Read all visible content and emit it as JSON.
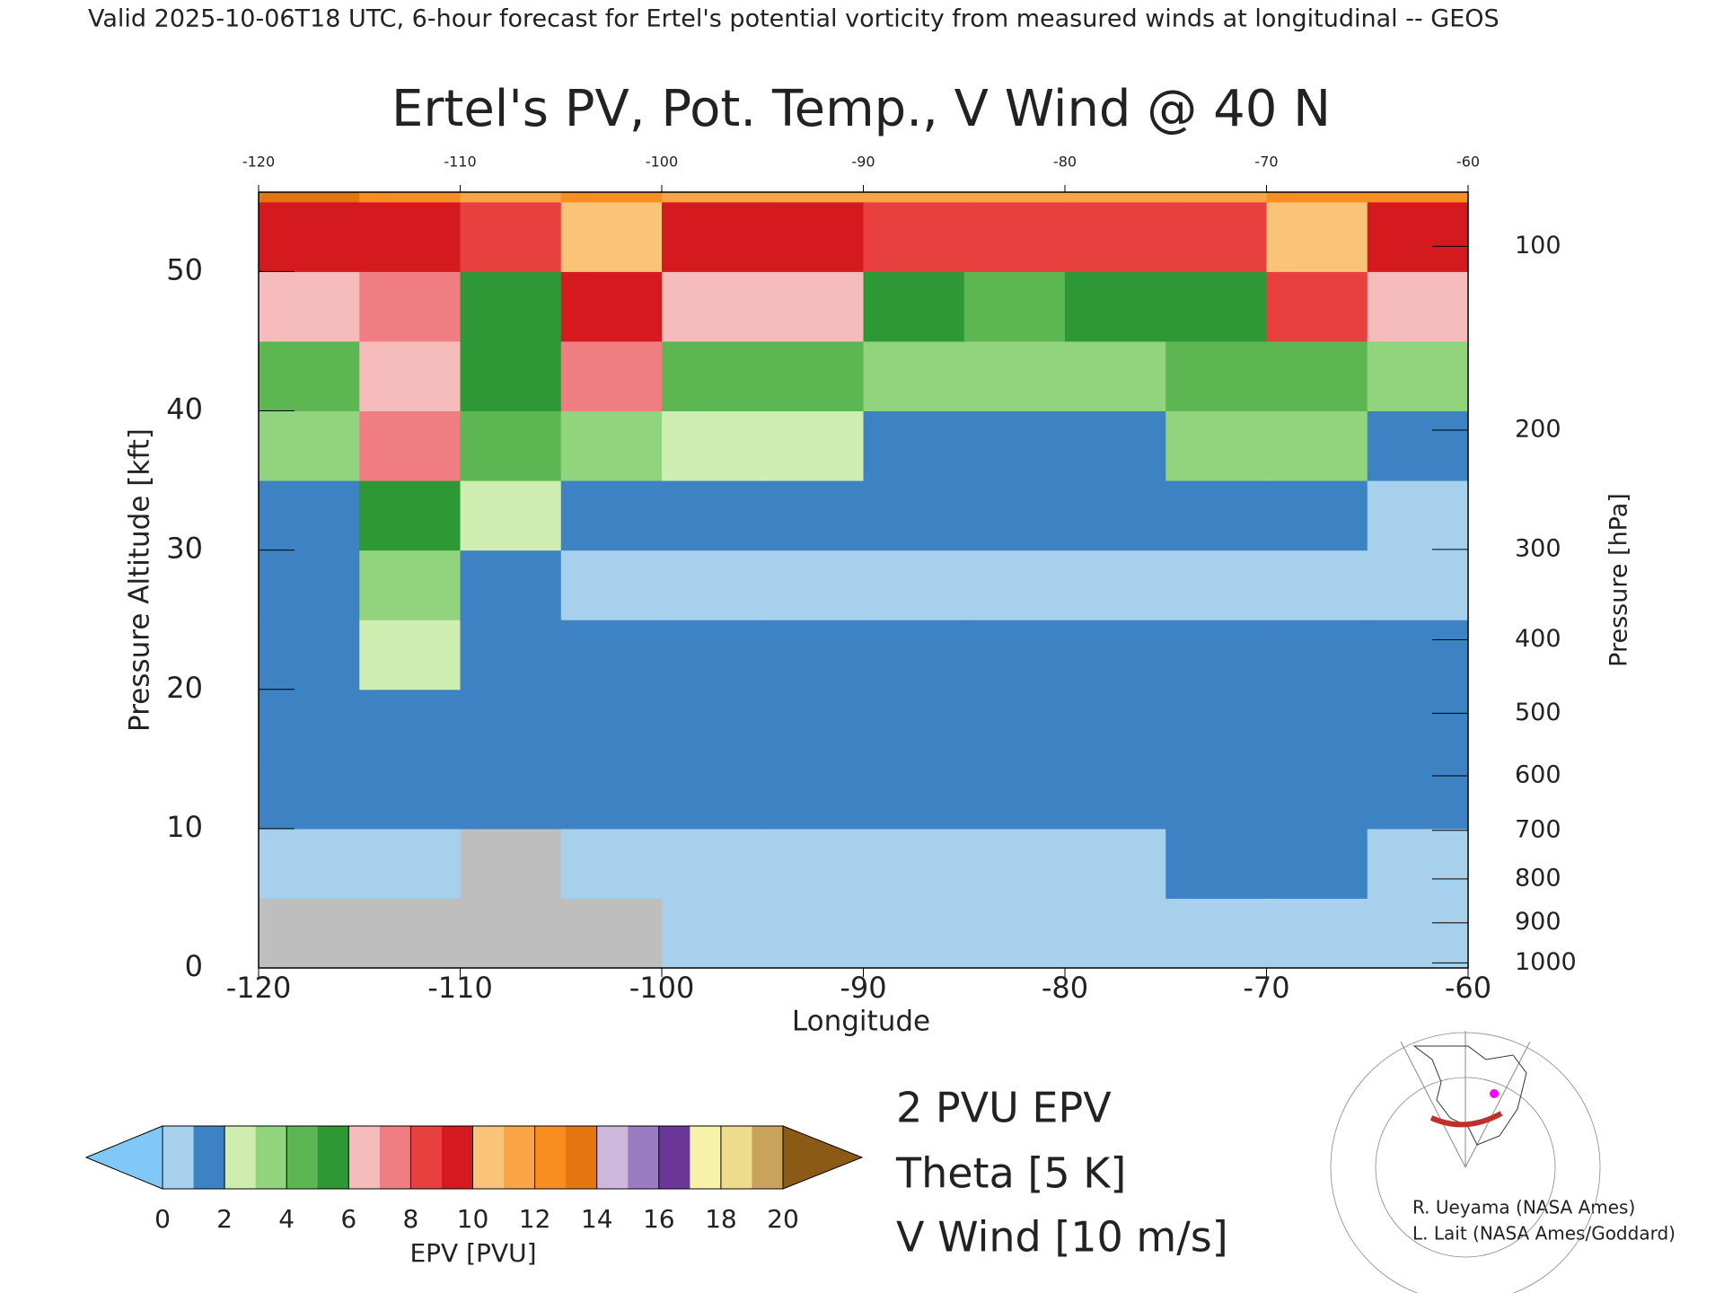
{
  "chart_data": {
    "type": "heatmap",
    "header": "Valid 2025-10-06T18 UTC, 6-hour forecast for Ertel's potential vorticity from measured winds at longitudinal -- GEOS",
    "title": "Ertel's PV, Pot. Temp., V Wind @ 40 N",
    "xlabel": "Longitude",
    "ylabel": "Pressure Altitude [kft]",
    "y2label": "Pressure [hPa]",
    "xlim": [
      -120,
      -60
    ],
    "xticks": [
      -120,
      -110,
      -100,
      -90,
      -80,
      -70,
      -60
    ],
    "ylim": [
      0,
      55.7
    ],
    "yticks": [
      0,
      10,
      20,
      30,
      40,
      50
    ],
    "y2scale": "pressure-altitude",
    "y2ticks": [
      100,
      200,
      300,
      400,
      500,
      600,
      700,
      800,
      900,
      1000
    ],
    "x": [
      -117.5,
      -112.5,
      -107.5,
      -102.5,
      -97.5,
      -92.5,
      -87.5,
      -82.5,
      -77.5,
      -72.5,
      -67.5,
      -62.5
    ],
    "y": [
      2.5,
      7.5,
      12.5,
      17.5,
      22.5,
      27.5,
      32.5,
      37.5,
      42.5,
      47.5,
      52.5,
      57.5
    ],
    "z": [
      [
        null,
        null,
        null,
        null,
        0.5,
        0.5,
        0.5,
        0.5,
        0.5,
        0.8,
        0.8,
        0.8
      ],
      [
        0.8,
        0.8,
        null,
        0.8,
        0.9,
        0.9,
        0.9,
        0.9,
        0.9,
        1.0,
        1.0,
        0.9
      ],
      [
        1.0,
        1.2,
        1.0,
        1.0,
        1.0,
        1.0,
        1.0,
        1.0,
        1.0,
        1.0,
        1.0,
        1.0
      ],
      [
        1.0,
        1.0,
        1.0,
        1.0,
        1.0,
        1.0,
        1.0,
        1.0,
        1.0,
        1.0,
        1.0,
        1.0
      ],
      [
        1.2,
        2.5,
        1.0,
        1.0,
        1.0,
        1.0,
        1.0,
        1.3,
        1.0,
        1.0,
        1.0,
        1.0
      ],
      [
        1.3,
        3.5,
        1.0,
        0.9,
        0.9,
        0.9,
        0.9,
        0.9,
        0.9,
        0.9,
        0.9,
        0.9
      ],
      [
        1.5,
        5,
        2.5,
        1.2,
        1.2,
        1.0,
        1.0,
        1.0,
        1.0,
        1.0,
        1.0,
        0.8
      ],
      [
        3.5,
        7,
        4,
        3.5,
        2.5,
        2.2,
        1.5,
        1.5,
        1.5,
        3,
        3,
        1.0
      ],
      [
        4.5,
        6.5,
        5,
        7.5,
        4.5,
        4,
        3.5,
        3.5,
        3.5,
        4,
        4.5,
        3
      ],
      [
        6,
        7.5,
        5.5,
        9,
        6,
        6,
        5,
        4.5,
        5,
        5,
        8,
        6
      ],
      [
        9,
        9.5,
        8,
        10,
        9,
        9,
        8.5,
        8,
        8.5,
        8,
        10,
        9.5
      ],
      [
        13,
        12,
        11,
        12,
        11,
        11,
        11,
        11,
        11,
        11,
        12,
        12
      ]
    ],
    "colorbar_label": "EPV [PVU]",
    "colorbar_levels": [
      0,
      1,
      2,
      3,
      4,
      5,
      6,
      7,
      8,
      9,
      10,
      11,
      12,
      13,
      14,
      15,
      16,
      17,
      18,
      19,
      20
    ],
    "colorbar_ticks": [
      0,
      2,
      4,
      6,
      8,
      10,
      12,
      14,
      16,
      18,
      20
    ],
    "colors": [
      "#a6d0ec",
      "#3d82c2",
      "#cdeeb0",
      "#92d37e",
      "#5cb652",
      "#2e9736",
      "#f6bcbc",
      "#f07d82",
      "#e8403e",
      "#d41a1e",
      "#f9c477",
      "#f9a545",
      "#f88e1f",
      "#e5760f",
      "#cdb7dc",
      "#9a7cc2",
      "#6a3798",
      "#f6f2a8",
      "#eedb8c",
      "#c9a35c"
    ],
    "under_color": "#80c8f8",
    "over_color": "#8b5a14",
    "missing_color": "#bebebe",
    "legend": [
      "2 PVU EPV",
      "Theta [5 K]",
      "V Wind [10 m/s]"
    ],
    "credits": [
      "R. Ueyama (NASA Ames)",
      "L. Lait (NASA Ames/Goddard)"
    ]
  }
}
